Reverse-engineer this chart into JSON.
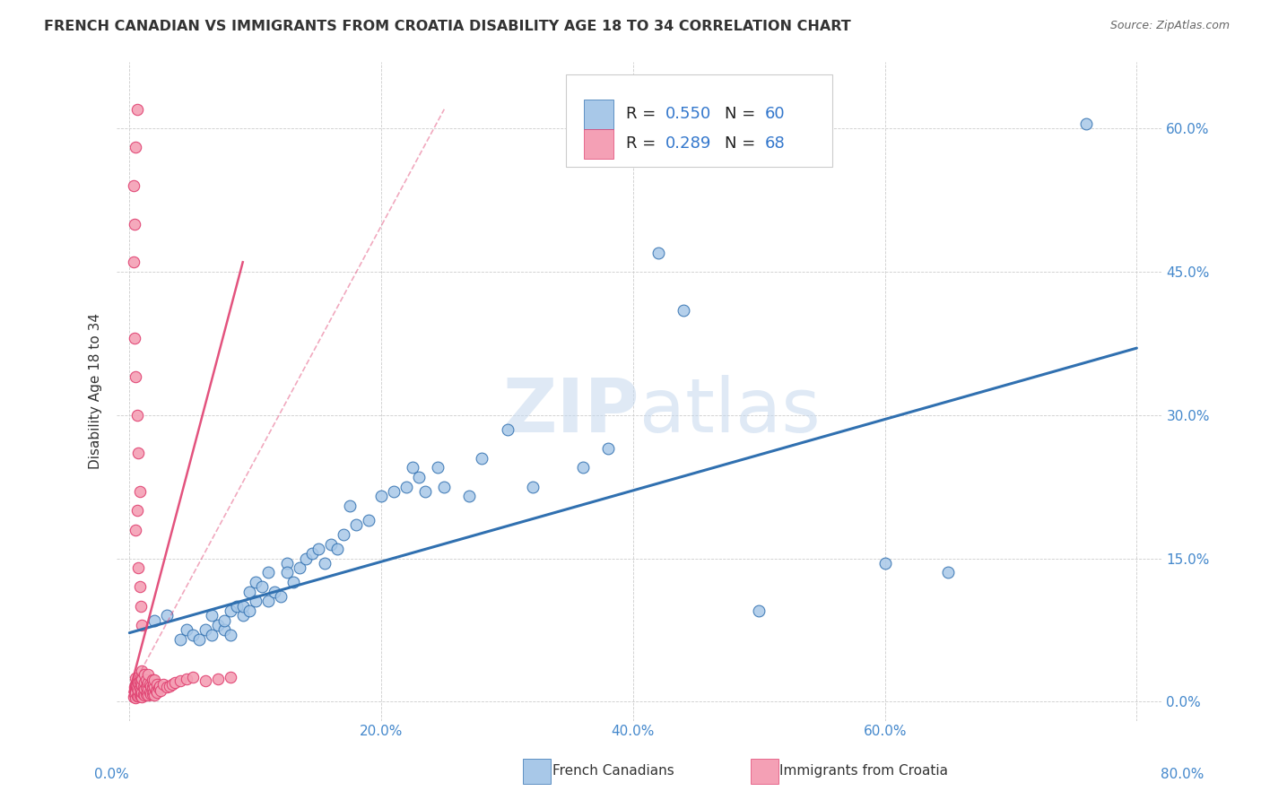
{
  "title": "FRENCH CANADIAN VS IMMIGRANTS FROM CROATIA DISABILITY AGE 18 TO 34 CORRELATION CHART",
  "source": "Source: ZipAtlas.com",
  "ylabel": "Disability Age 18 to 34",
  "xlabel_ticks": [
    "0.0%",
    "20.0%",
    "40.0%",
    "60.0%",
    "80.0%"
  ],
  "xlabel_vals": [
    0.0,
    0.2,
    0.4,
    0.6,
    0.8
  ],
  "ylabel_ticks": [
    "0.0%",
    "15.0%",
    "30.0%",
    "45.0%",
    "60.0%"
  ],
  "ylabel_vals": [
    0.0,
    0.15,
    0.3,
    0.45,
    0.6
  ],
  "xlim": [
    -0.01,
    0.82
  ],
  "ylim": [
    -0.02,
    0.67
  ],
  "legend1_label": "French Canadians",
  "legend2_label": "Immigrants from Croatia",
  "R1": 0.55,
  "N1": 60,
  "R2": 0.289,
  "N2": 68,
  "color_blue": "#a8c8e8",
  "color_pink": "#f4a0b5",
  "color_line_blue": "#3070b0",
  "color_line_pink": "#e04070",
  "watermark_zip": "ZIP",
  "watermark_atlas": "atlas",
  "blue_scatter_x": [
    0.02,
    0.03,
    0.04,
    0.045,
    0.05,
    0.055,
    0.06,
    0.065,
    0.065,
    0.07,
    0.075,
    0.075,
    0.08,
    0.08,
    0.085,
    0.09,
    0.09,
    0.095,
    0.095,
    0.1,
    0.1,
    0.105,
    0.11,
    0.11,
    0.115,
    0.12,
    0.125,
    0.125,
    0.13,
    0.135,
    0.14,
    0.145,
    0.15,
    0.155,
    0.16,
    0.165,
    0.17,
    0.175,
    0.18,
    0.19,
    0.2,
    0.21,
    0.22,
    0.225,
    0.23,
    0.235,
    0.245,
    0.25,
    0.27,
    0.28,
    0.3,
    0.32,
    0.36,
    0.38,
    0.42,
    0.44,
    0.5,
    0.6,
    0.65,
    0.76
  ],
  "blue_scatter_y": [
    0.085,
    0.09,
    0.065,
    0.075,
    0.07,
    0.065,
    0.075,
    0.07,
    0.09,
    0.08,
    0.075,
    0.085,
    0.07,
    0.095,
    0.1,
    0.09,
    0.1,
    0.115,
    0.095,
    0.105,
    0.125,
    0.12,
    0.105,
    0.135,
    0.115,
    0.11,
    0.145,
    0.135,
    0.125,
    0.14,
    0.15,
    0.155,
    0.16,
    0.145,
    0.165,
    0.16,
    0.175,
    0.205,
    0.185,
    0.19,
    0.215,
    0.22,
    0.225,
    0.245,
    0.235,
    0.22,
    0.245,
    0.225,
    0.215,
    0.255,
    0.285,
    0.225,
    0.245,
    0.265,
    0.47,
    0.41,
    0.095,
    0.145,
    0.135,
    0.605
  ],
  "pink_scatter_x": [
    0.003,
    0.004,
    0.004,
    0.005,
    0.005,
    0.005,
    0.005,
    0.006,
    0.006,
    0.007,
    0.007,
    0.007,
    0.008,
    0.008,
    0.008,
    0.009,
    0.009,
    0.009,
    0.009,
    0.01,
    0.01,
    0.01,
    0.01,
    0.01,
    0.011,
    0.011,
    0.012,
    0.012,
    0.012,
    0.012,
    0.013,
    0.013,
    0.013,
    0.014,
    0.014,
    0.015,
    0.015,
    0.015,
    0.015,
    0.016,
    0.016,
    0.017,
    0.017,
    0.018,
    0.018,
    0.018,
    0.019,
    0.019,
    0.02,
    0.02,
    0.02,
    0.021,
    0.022,
    0.022,
    0.023,
    0.024,
    0.025,
    0.027,
    0.03,
    0.032,
    0.034,
    0.036,
    0.04,
    0.045,
    0.05,
    0.06,
    0.07,
    0.08
  ],
  "pink_scatter_y": [
    0.005,
    0.008,
    0.015,
    0.004,
    0.01,
    0.018,
    0.025,
    0.006,
    0.013,
    0.006,
    0.012,
    0.02,
    0.007,
    0.014,
    0.022,
    0.006,
    0.012,
    0.018,
    0.026,
    0.005,
    0.01,
    0.017,
    0.024,
    0.032,
    0.008,
    0.015,
    0.007,
    0.013,
    0.02,
    0.028,
    0.008,
    0.015,
    0.023,
    0.01,
    0.018,
    0.007,
    0.013,
    0.02,
    0.028,
    0.01,
    0.018,
    0.008,
    0.016,
    0.008,
    0.015,
    0.023,
    0.01,
    0.018,
    0.007,
    0.015,
    0.023,
    0.012,
    0.01,
    0.018,
    0.014,
    0.016,
    0.012,
    0.018,
    0.015,
    0.016,
    0.018,
    0.02,
    0.022,
    0.024,
    0.026,
    0.022,
    0.024,
    0.026
  ],
  "pink_outliers_x": [
    0.003,
    0.004,
    0.005,
    0.006,
    0.007,
    0.008,
    0.006,
    0.005,
    0.004,
    0.003,
    0.005,
    0.006,
    0.007,
    0.008,
    0.009,
    0.01
  ],
  "pink_outliers_y": [
    0.46,
    0.38,
    0.34,
    0.3,
    0.26,
    0.22,
    0.2,
    0.18,
    0.5,
    0.54,
    0.58,
    0.62,
    0.14,
    0.12,
    0.1,
    0.08
  ],
  "blue_trendline_x": [
    0.0,
    0.8
  ],
  "blue_trendline_y": [
    0.072,
    0.37
  ],
  "pink_trendline_x": [
    0.0,
    0.09
  ],
  "pink_trendline_y": [
    0.01,
    0.46
  ]
}
